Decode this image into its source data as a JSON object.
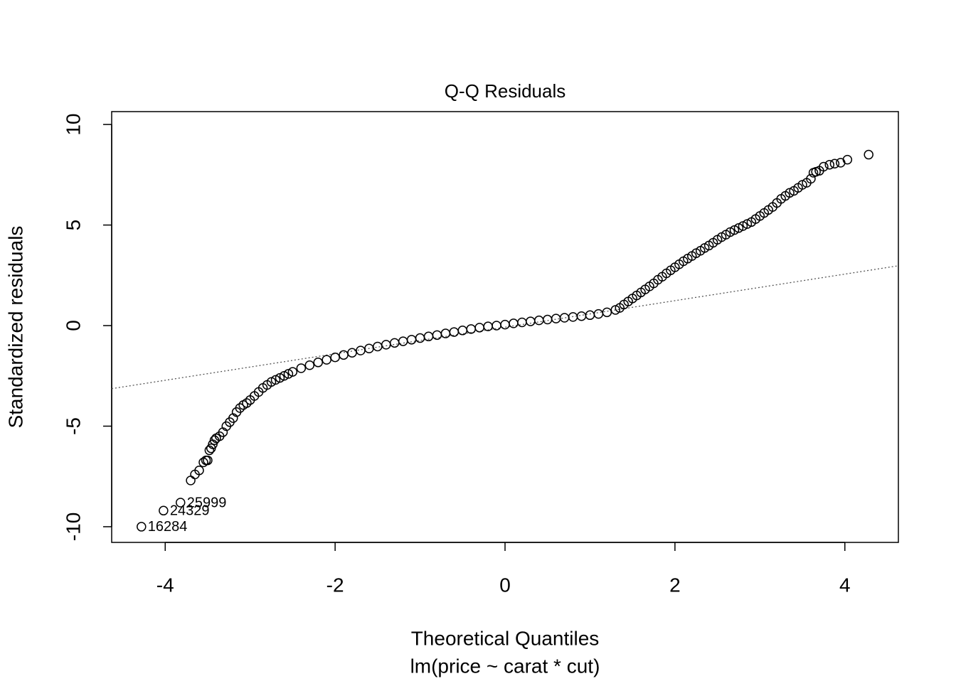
{
  "chart_data": {
    "type": "scatter",
    "title": "Q-Q Residuals",
    "x_label": "Theoretical Quantiles",
    "subtitle": "lm(price ~ carat * cut)",
    "y_label": "Standardized residuals",
    "xlim": [
      -4.63,
      4.63
    ],
    "ylim": [
      -10.78,
      10.64
    ],
    "xticks": [
      -4,
      -2,
      0,
      2,
      4
    ],
    "yticks": [
      -10,
      -5,
      0,
      5,
      10
    ],
    "ref_line": {
      "slope": 0.66,
      "intercept": -0.08
    },
    "color": "#000000",
    "x": [
      -3.7,
      -3.65,
      -3.6,
      -3.55,
      -3.52,
      -3.5,
      -3.48,
      -3.46,
      -3.44,
      -3.42,
      -3.4,
      -3.36,
      -3.32,
      -3.28,
      -3.24,
      -3.2,
      -3.16,
      -3.12,
      -3.08,
      -3.04,
      -3.0,
      -2.95,
      -2.9,
      -2.85,
      -2.8,
      -2.75,
      -2.7,
      -2.65,
      -2.6,
      -2.55,
      -2.5,
      -2.4,
      -2.3,
      -2.2,
      -2.1,
      -2.0,
      -1.9,
      -1.8,
      -1.7,
      -1.6,
      -1.5,
      -1.4,
      -1.3,
      -1.2,
      -1.1,
      -1.0,
      -0.9,
      -0.8,
      -0.7,
      -0.6,
      -0.5,
      -0.4,
      -0.3,
      -0.2,
      -0.1,
      0.0,
      0.1,
      0.2,
      0.3,
      0.4,
      0.5,
      0.6,
      0.7,
      0.8,
      0.9,
      1.0,
      1.1,
      1.2,
      1.3,
      1.35,
      1.4,
      1.45,
      1.5,
      1.55,
      1.6,
      1.65,
      1.7,
      1.75,
      1.8,
      1.85,
      1.9,
      1.95,
      2.0,
      2.05,
      2.1,
      2.15,
      2.2,
      2.25,
      2.3,
      2.35,
      2.4,
      2.45,
      2.5,
      2.55,
      2.6,
      2.65,
      2.7,
      2.75,
      2.8,
      2.85,
      2.9,
      2.95,
      3.0,
      3.05,
      3.1,
      3.15,
      3.2,
      3.25,
      3.3,
      3.35,
      3.4,
      3.45,
      3.5,
      3.55,
      3.6,
      3.63,
      3.66,
      3.7,
      3.75,
      3.82,
      3.88,
      3.95,
      4.03,
      4.28
    ],
    "y": [
      -7.7,
      -7.4,
      -7.2,
      -6.8,
      -6.7,
      -6.7,
      -6.2,
      -6.1,
      -5.9,
      -5.7,
      -5.6,
      -5.5,
      -5.3,
      -5.0,
      -4.8,
      -4.6,
      -4.3,
      -4.1,
      -3.95,
      -3.85,
      -3.7,
      -3.5,
      -3.3,
      -3.1,
      -2.95,
      -2.8,
      -2.7,
      -2.6,
      -2.5,
      -2.4,
      -2.3,
      -2.12,
      -1.97,
      -1.83,
      -1.7,
      -1.58,
      -1.46,
      -1.35,
      -1.24,
      -1.14,
      -1.04,
      -0.95,
      -0.86,
      -0.78,
      -0.7,
      -0.62,
      -0.54,
      -0.47,
      -0.39,
      -0.32,
      -0.24,
      -0.17,
      -0.1,
      -0.04,
      0.0,
      0.05,
      0.11,
      0.16,
      0.21,
      0.26,
      0.3,
      0.35,
      0.39,
      0.43,
      0.47,
      0.52,
      0.58,
      0.66,
      0.78,
      0.88,
      1.05,
      1.2,
      1.35,
      1.5,
      1.65,
      1.8,
      1.95,
      2.1,
      2.28,
      2.43,
      2.6,
      2.75,
      2.9,
      3.05,
      3.2,
      3.33,
      3.46,
      3.6,
      3.72,
      3.86,
      3.98,
      4.12,
      4.27,
      4.4,
      4.52,
      4.65,
      4.75,
      4.85,
      4.95,
      5.05,
      5.15,
      5.3,
      5.45,
      5.6,
      5.75,
      5.9,
      6.1,
      6.3,
      6.45,
      6.6,
      6.7,
      6.85,
      7.0,
      7.1,
      7.3,
      7.6,
      7.65,
      7.7,
      7.9,
      8.0,
      8.05,
      8.1,
      8.25,
      8.5
    ],
    "annotations": [
      {
        "text": "16284",
        "x": -4.28,
        "y": -10.0
      },
      {
        "text": "24329",
        "x": -4.02,
        "y": -9.2
      },
      {
        "text": "25999",
        "x": -3.82,
        "y": -8.8
      }
    ]
  }
}
